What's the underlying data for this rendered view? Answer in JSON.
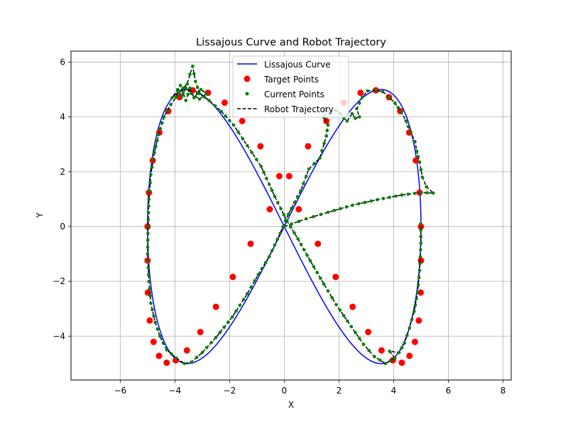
{
  "chart_data": {
    "type": "line",
    "title": "Lissajous Curve and Robot Trajectory",
    "xlabel": "X",
    "ylabel": "Y",
    "xlim": [
      -7.8,
      8.3
    ],
    "ylim": [
      -5.6,
      6.4
    ],
    "x_ticks": [
      -6,
      -4,
      -2,
      0,
      2,
      4,
      6,
      8
    ],
    "y_ticks": [
      -4,
      -2,
      0,
      2,
      4,
      6
    ],
    "x_tick_labels": [
      "−6",
      "−4",
      "−2",
      "0",
      "2",
      "4",
      "6",
      "8"
    ],
    "y_tick_labels": [
      "−4",
      "−2",
      "0",
      "2",
      "4",
      "6"
    ],
    "grid": true,
    "legend_position": "top-center",
    "curve": {
      "x_amplitude": 5,
      "y_amplitude": 5,
      "x_frequency": 1,
      "y_frequency": 2
    },
    "series": [
      {
        "name": "Lissajous Curve",
        "type": "line",
        "color": "#0000ff"
      },
      {
        "name": "Target Points",
        "type": "scatter",
        "color": "#ff0000"
      },
      {
        "name": "Current Points",
        "type": "scatter",
        "color": "#008000"
      },
      {
        "name": "Robot Trajectory",
        "type": "dashed-line",
        "color": "#000000"
      }
    ],
    "target_points": [
      [
        5.0,
        0.0
      ],
      [
        4.95,
        1.24
      ],
      [
        4.81,
        2.41
      ],
      [
        4.57,
        3.43
      ],
      [
        4.24,
        4.21
      ],
      [
        3.83,
        4.72
      ],
      [
        3.35,
        4.97
      ],
      [
        2.79,
        4.88
      ],
      [
        2.18,
        4.52
      ],
      [
        1.54,
        3.85
      ],
      [
        0.87,
        2.93
      ],
      [
        0.18,
        1.84
      ],
      [
        -0.53,
        0.63
      ],
      [
        -1.23,
        -0.63
      ],
      [
        -1.88,
        -1.84
      ],
      [
        -2.5,
        -2.93
      ],
      [
        -3.07,
        -3.85
      ],
      [
        -3.56,
        -4.52
      ],
      [
        -3.97,
        -4.88
      ],
      [
        -4.3,
        -4.97
      ],
      [
        -4.58,
        -4.72
      ],
      [
        -4.78,
        -4.21
      ],
      [
        -4.92,
        -3.43
      ],
      [
        -4.99,
        -2.41
      ],
      [
        -5.0,
        -1.24
      ],
      [
        -5.0,
        0.0
      ],
      [
        -4.95,
        1.24
      ],
      [
        -4.81,
        2.41
      ],
      [
        -4.57,
        3.43
      ],
      [
        -4.24,
        4.21
      ],
      [
        -3.83,
        4.72
      ],
      [
        -3.35,
        4.97
      ],
      [
        -2.79,
        4.88
      ],
      [
        -2.18,
        4.52
      ],
      [
        -1.54,
        3.85
      ],
      [
        -0.87,
        2.93
      ],
      [
        -0.18,
        1.84
      ],
      [
        0.53,
        0.63
      ],
      [
        1.23,
        -0.63
      ],
      [
        1.88,
        -1.84
      ],
      [
        2.5,
        -2.93
      ],
      [
        3.07,
        -3.85
      ],
      [
        3.56,
        -4.52
      ],
      [
        3.97,
        -4.88
      ],
      [
        4.3,
        -4.97
      ],
      [
        4.58,
        -4.72
      ],
      [
        4.78,
        -4.21
      ],
      [
        4.92,
        -3.43
      ],
      [
        4.99,
        -2.41
      ],
      [
        5.0,
        -1.24
      ]
    ],
    "robot_trajectory": [
      [
        0.0,
        0.0
      ],
      [
        0.8,
        0.28
      ],
      [
        1.6,
        0.52
      ],
      [
        2.5,
        0.78
      ],
      [
        3.4,
        0.98
      ],
      [
        4.3,
        1.15
      ],
      [
        5.0,
        1.24
      ],
      [
        5.45,
        1.22
      ],
      [
        5.2,
        1.45
      ],
      [
        5.05,
        1.8
      ],
      [
        4.95,
        2.35
      ],
      [
        4.85,
        2.75
      ],
      [
        4.78,
        3.1
      ],
      [
        4.62,
        3.45
      ],
      [
        4.45,
        3.85
      ],
      [
        4.28,
        4.18
      ],
      [
        4.05,
        4.5
      ],
      [
        3.83,
        4.72
      ],
      [
        3.6,
        4.92
      ],
      [
        3.35,
        4.97
      ],
      [
        3.05,
        4.95
      ],
      [
        2.85,
        4.72
      ],
      [
        2.75,
        4.5
      ],
      [
        2.65,
        4.3
      ],
      [
        2.75,
        4.0
      ],
      [
        2.6,
        3.95
      ],
      [
        2.48,
        4.12
      ],
      [
        2.3,
        3.85
      ],
      [
        2.18,
        3.95
      ],
      [
        2.05,
        4.12
      ],
      [
        1.88,
        4.25
      ],
      [
        1.65,
        4.15
      ],
      [
        1.5,
        4.3
      ],
      [
        1.45,
        3.98
      ],
      [
        1.6,
        3.7
      ],
      [
        1.54,
        3.3
      ],
      [
        1.3,
        2.5
      ],
      [
        0.9,
        2.1
      ],
      [
        0.6,
        1.3
      ],
      [
        0.15,
        0.45
      ],
      [
        -0.15,
        -0.25
      ],
      [
        -0.55,
        -1.1
      ],
      [
        -0.95,
        -1.75
      ],
      [
        -1.35,
        -2.45
      ],
      [
        -1.9,
        -3.3
      ],
      [
        -2.5,
        -4.05
      ],
      [
        -3.0,
        -4.6
      ],
      [
        -3.4,
        -4.95
      ],
      [
        -3.65,
        -5.0
      ],
      [
        -3.95,
        -4.8
      ],
      [
        -4.3,
        -4.5
      ],
      [
        -4.55,
        -4.0
      ],
      [
        -4.72,
        -3.5
      ],
      [
        -4.88,
        -2.8
      ],
      [
        -4.95,
        -2.0
      ],
      [
        -5.0,
        -1.0
      ],
      [
        -4.98,
        0.0
      ],
      [
        -4.95,
        1.0
      ],
      [
        -4.88,
        1.9
      ],
      [
        -4.75,
        2.7
      ],
      [
        -4.6,
        3.35
      ],
      [
        -4.4,
        4.0
      ],
      [
        -4.15,
        4.45
      ],
      [
        -3.95,
        4.72
      ],
      [
        -3.8,
        5.15
      ],
      [
        -3.6,
        4.6
      ],
      [
        -3.45,
        5.05
      ],
      [
        -3.3,
        4.7
      ],
      [
        -3.05,
        5.0
      ],
      [
        -2.85,
        4.85
      ],
      [
        -3.1,
        4.65
      ],
      [
        -3.4,
        4.85
      ],
      [
        -3.6,
        5.05
      ],
      [
        -3.75,
        4.75
      ],
      [
        -3.9,
        5.0
      ],
      [
        -4.1,
        4.7
      ],
      [
        -3.85,
        4.9
      ],
      [
        -3.55,
        5.2
      ],
      [
        -3.45,
        5.55
      ],
      [
        -3.35,
        5.85
      ],
      [
        -3.25,
        5.3
      ],
      [
        -3.1,
        4.85
      ],
      [
        -2.75,
        4.6
      ],
      [
        -2.3,
        4.2
      ],
      [
        -1.85,
        3.7
      ],
      [
        -1.35,
        2.95
      ],
      [
        -0.85,
        2.2
      ],
      [
        -0.35,
        1.1
      ],
      [
        0.1,
        0.2
      ],
      [
        0.5,
        -0.45
      ],
      [
        0.95,
        -1.25
      ],
      [
        1.45,
        -2.1
      ],
      [
        1.9,
        -2.85
      ],
      [
        2.45,
        -3.65
      ],
      [
        2.9,
        -4.3
      ],
      [
        3.3,
        -4.75
      ],
      [
        3.7,
        -5.0
      ],
      [
        4.05,
        -4.8
      ],
      [
        3.85,
        -4.55
      ],
      [
        4.2,
        -4.6
      ],
      [
        4.4,
        -4.25
      ],
      [
        4.58,
        -3.7
      ],
      [
        4.75,
        -3.1
      ],
      [
        4.88,
        -2.4
      ],
      [
        4.95,
        -1.6
      ],
      [
        5.0,
        -0.6
      ],
      [
        4.99,
        0.1
      ]
    ],
    "current_points_note": "",
    "legend": [
      "Lissajous Curve",
      "Target Points",
      "Current Points",
      "Robot Trajectory"
    ]
  }
}
